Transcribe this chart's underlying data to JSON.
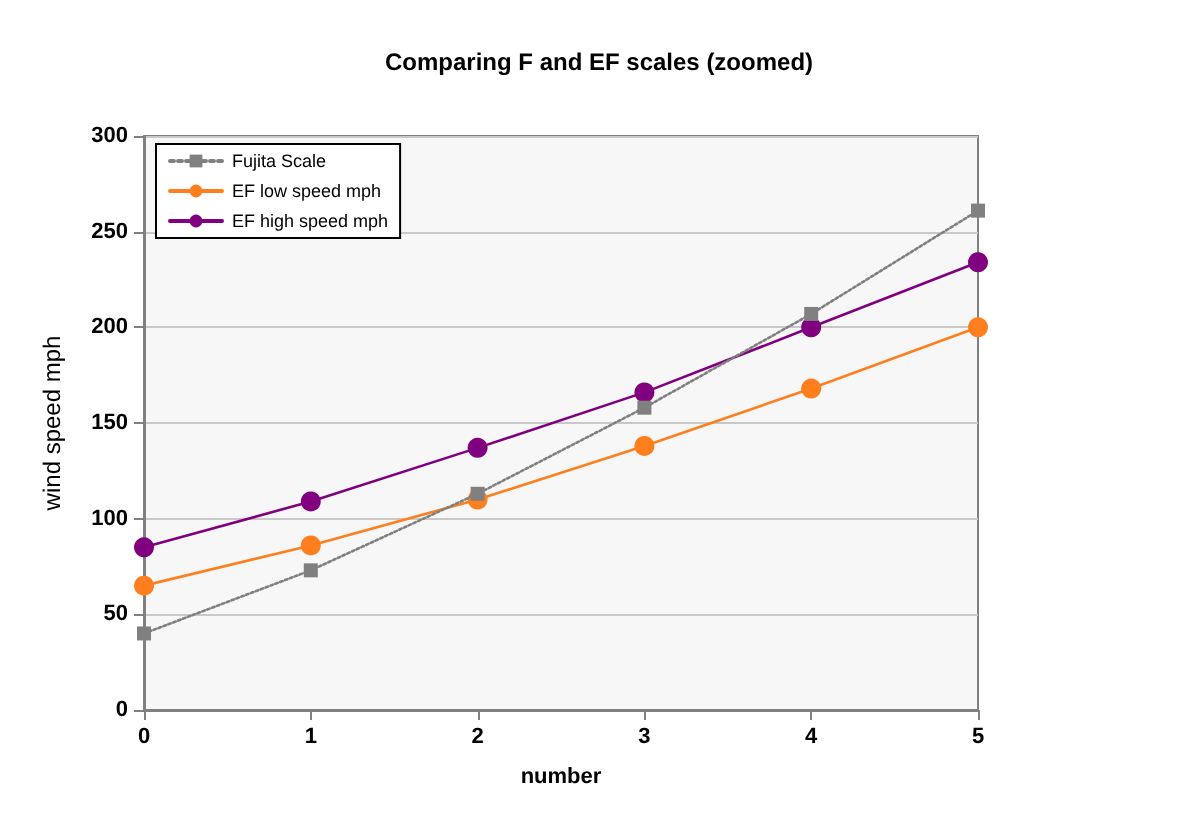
{
  "chart_data": {
    "type": "line",
    "title": "Comparing F and EF scales (zoomed)",
    "xlabel": "number",
    "ylabel": "wind speed mph",
    "x": [
      0,
      1,
      2,
      3,
      4,
      5
    ],
    "xlim": [
      0,
      5
    ],
    "xticks": [
      0,
      1,
      2,
      3,
      4,
      5
    ],
    "ylim": [
      0,
      300
    ],
    "yticks": [
      0,
      50,
      100,
      150,
      200,
      250,
      300
    ],
    "grid": "y",
    "legend": "top left",
    "series": [
      {
        "name": "Fujita Scale",
        "color": "#808080",
        "marker": "square",
        "line_style": "dotted",
        "values": [
          40,
          73,
          113,
          158,
          207,
          261
        ]
      },
      {
        "name": "EF low speed mph",
        "color": "#ff7f1e",
        "marker": "circle",
        "line_style": "solid",
        "values": [
          65,
          86,
          110,
          138,
          168,
          200
        ]
      },
      {
        "name": "EF high speed mph",
        "color": "#800080",
        "marker": "circle",
        "line_style": "solid",
        "values": [
          85,
          109,
          137,
          166,
          200,
          234
        ]
      }
    ]
  }
}
